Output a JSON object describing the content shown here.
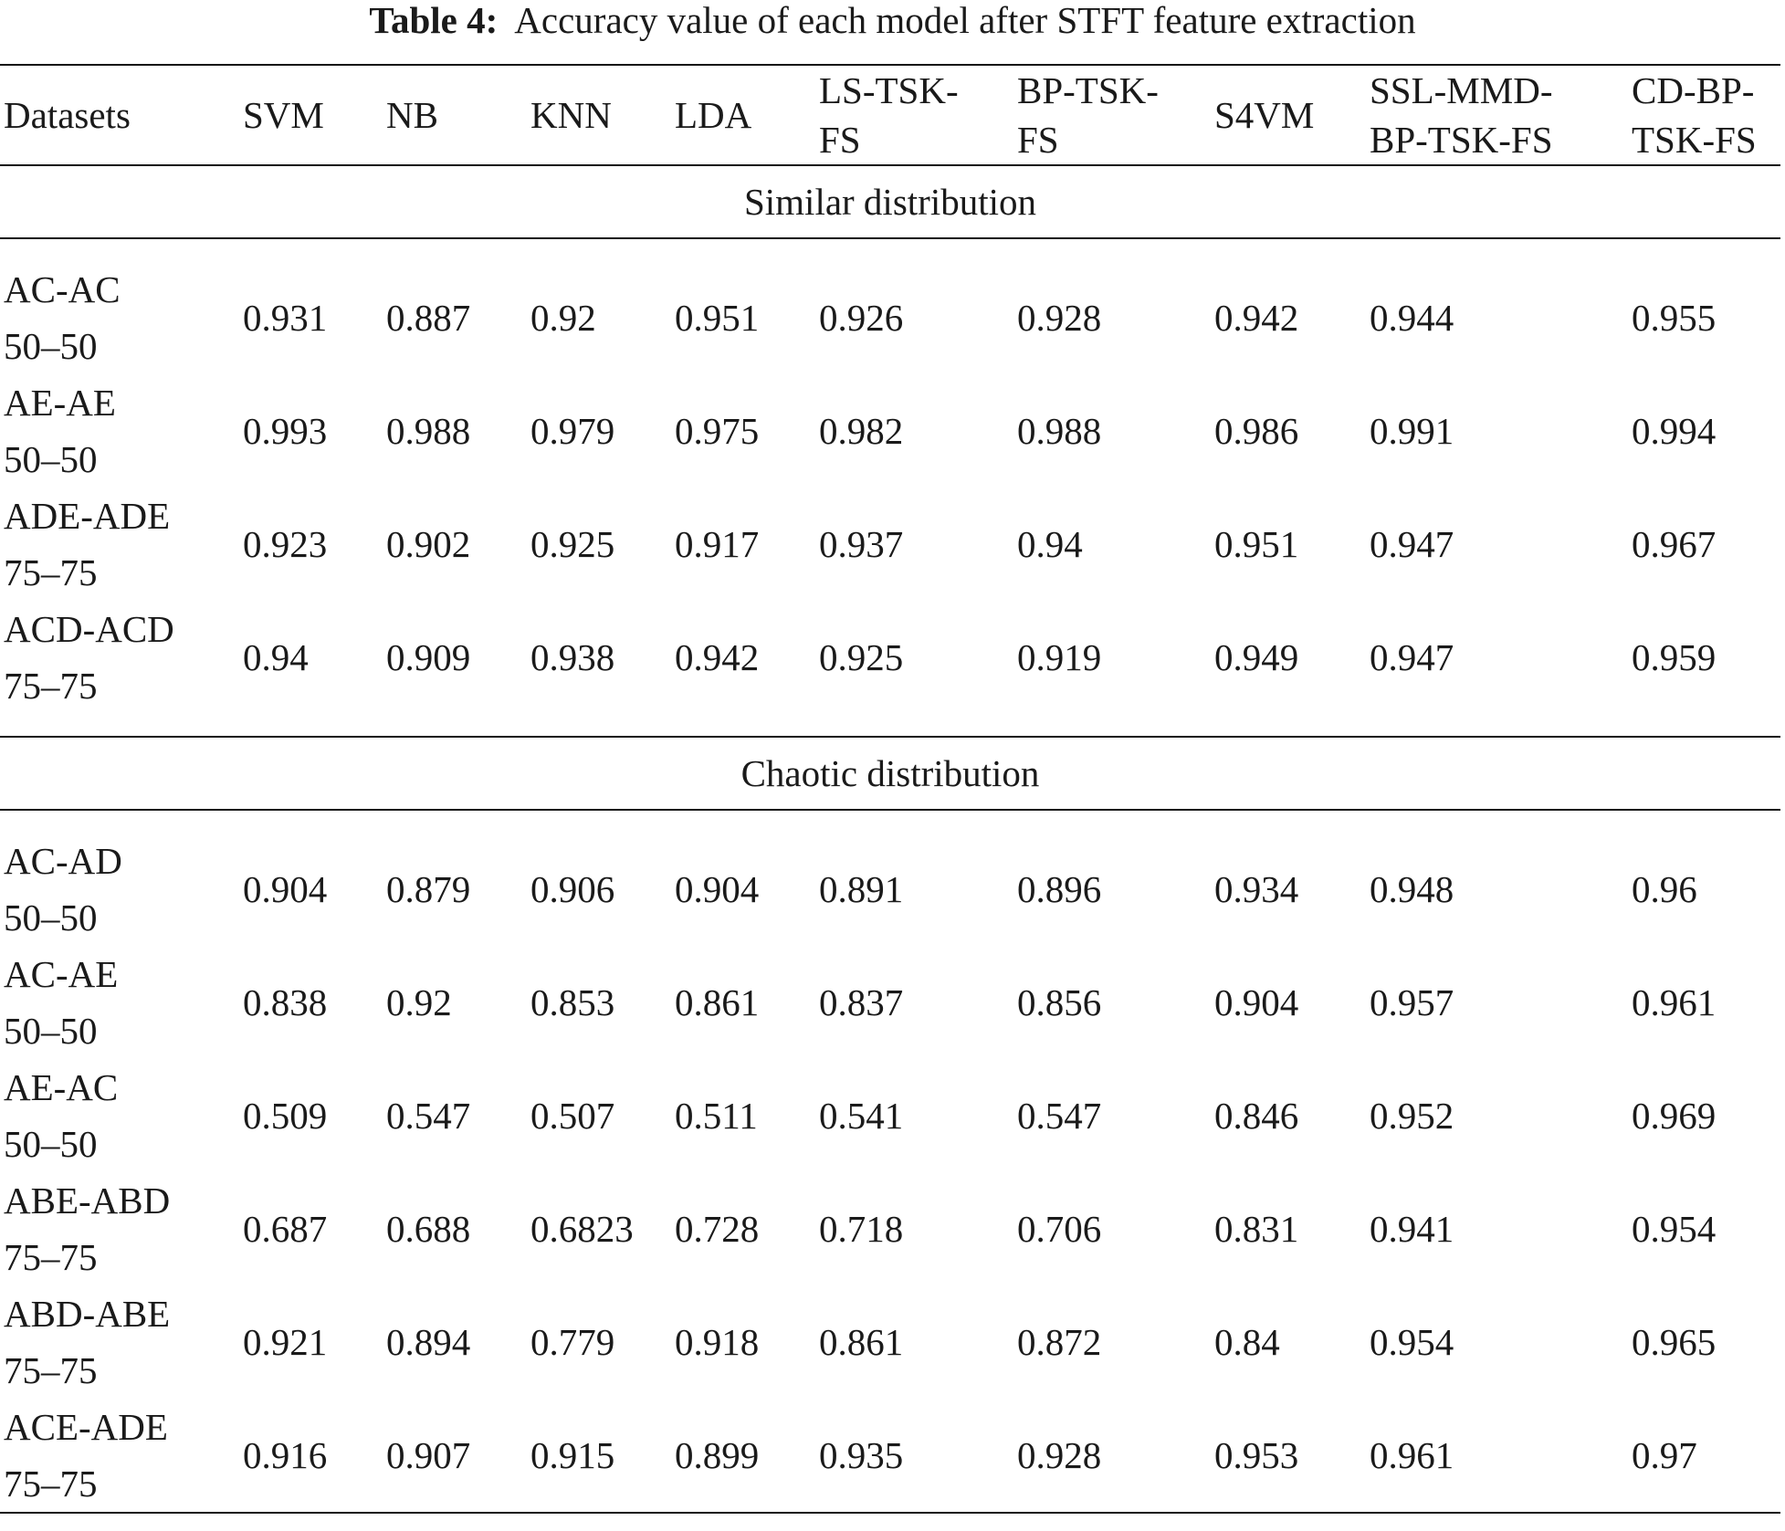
{
  "caption": {
    "label": "Table 4:",
    "text": "Accuracy value of each model after STFT feature extraction"
  },
  "columns": [
    {
      "line1": "Datasets",
      "line2": ""
    },
    {
      "line1": "SVM",
      "line2": ""
    },
    {
      "line1": "NB",
      "line2": ""
    },
    {
      "line1": "KNN",
      "line2": ""
    },
    {
      "line1": "LDA",
      "line2": ""
    },
    {
      "line1": "LS-TSK-",
      "line2": "FS"
    },
    {
      "line1": "BP-TSK-",
      "line2": "FS"
    },
    {
      "line1": "S4VM",
      "line2": ""
    },
    {
      "line1": "SSL-MMD-",
      "line2": "BP-TSK-FS"
    },
    {
      "line1": "CD-BP-",
      "line2": "TSK-FS"
    }
  ],
  "sections": [
    {
      "title": "Similar distribution",
      "rows": [
        {
          "dataset": "AC-AC",
          "split": "50–50",
          "values": [
            "0.931",
            "0.887",
            "0.92",
            "0.951",
            "0.926",
            "0.928",
            "0.942",
            "0.944",
            "0.955"
          ]
        },
        {
          "dataset": "AE-AE",
          "split": "50–50",
          "values": [
            "0.993",
            "0.988",
            "0.979",
            "0.975",
            "0.982",
            "0.988",
            "0.986",
            "0.991",
            "0.994"
          ]
        },
        {
          "dataset": "ADE-ADE",
          "split": "75–75",
          "values": [
            "0.923",
            "0.902",
            "0.925",
            "0.917",
            "0.937",
            "0.94",
            "0.951",
            "0.947",
            "0.967"
          ]
        },
        {
          "dataset": "ACD-ACD",
          "split": "75–75",
          "values": [
            "0.94",
            "0.909",
            "0.938",
            "0.942",
            "0.925",
            "0.919",
            "0.949",
            "0.947",
            "0.959"
          ]
        }
      ]
    },
    {
      "title": "Chaotic distribution",
      "rows": [
        {
          "dataset": "AC-AD",
          "split": "50–50",
          "values": [
            "0.904",
            "0.879",
            "0.906",
            "0.904",
            "0.891",
            "0.896",
            "0.934",
            "0.948",
            "0.96"
          ]
        },
        {
          "dataset": "AC-AE",
          "split": "50–50",
          "values": [
            "0.838",
            "0.92",
            "0.853",
            "0.861",
            "0.837",
            "0.856",
            "0.904",
            "0.957",
            "0.961"
          ]
        },
        {
          "dataset": "AE-AC",
          "split": "50–50",
          "values": [
            "0.509",
            "0.547",
            "0.507",
            "0.511",
            "0.541",
            "0.547",
            "0.846",
            "0.952",
            "0.969"
          ]
        },
        {
          "dataset": "ABE-ABD",
          "split": "75–75",
          "values": [
            "0.687",
            "0.688",
            "0.6823",
            "0.728",
            "0.718",
            "0.706",
            "0.831",
            "0.941",
            "0.954"
          ]
        },
        {
          "dataset": "ABD-ABE",
          "split": "75–75",
          "values": [
            "0.921",
            "0.894",
            "0.779",
            "0.918",
            "0.861",
            "0.872",
            "0.84",
            "0.954",
            "0.965"
          ]
        },
        {
          "dataset": "ACE-ADE",
          "split": "75–75",
          "values": [
            "0.916",
            "0.907",
            "0.915",
            "0.899",
            "0.935",
            "0.928",
            "0.953",
            "0.961",
            "0.97"
          ]
        }
      ]
    }
  ]
}
